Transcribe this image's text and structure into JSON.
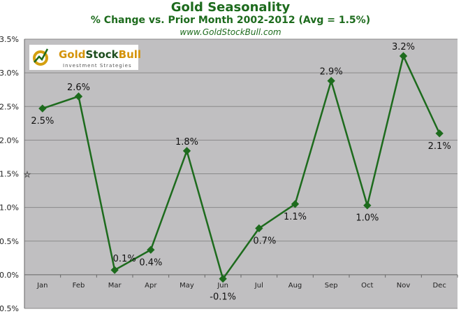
{
  "chart_data": {
    "type": "line",
    "title": "Gold Seasonality",
    "subtitle": "% Change vs. Prior Month 2002-2012 (Avg = 1.5%)",
    "source": "www.GoldStockBull.com",
    "categories": [
      "Jan",
      "Feb",
      "Mar",
      "Apr",
      "May",
      "Jun",
      "Jul",
      "Aug",
      "Sep",
      "Oct",
      "Nov",
      "Dec"
    ],
    "values": [
      2.47,
      2.65,
      0.07,
      0.37,
      1.84,
      -0.06,
      0.69,
      1.05,
      2.88,
      1.03,
      3.25,
      2.1
    ],
    "labels": [
      "2.5%",
      "2.6%",
      "0.1%",
      "0.4%",
      "1.8%",
      "-0.1%",
      "0.7%",
      "1.1%",
      "2.9%",
      "1.0%",
      "3.2%",
      "2.1%"
    ],
    "yticks": [
      "-0.5%",
      "0.0%",
      "0.5%",
      "1.0%",
      "1.5%",
      "2.0%",
      "2.5%",
      "3.0%",
      "3.5%"
    ],
    "ylim": [
      -0.5,
      3.5
    ],
    "average": 1.5,
    "grid": true,
    "colors": {
      "line": "#1d6b1d",
      "plot_bg": "#c0bfc1",
      "grid": "#8a8a8a"
    }
  },
  "logo": {
    "name": "GoldStockBull",
    "tagline": "Investment Strategies"
  }
}
